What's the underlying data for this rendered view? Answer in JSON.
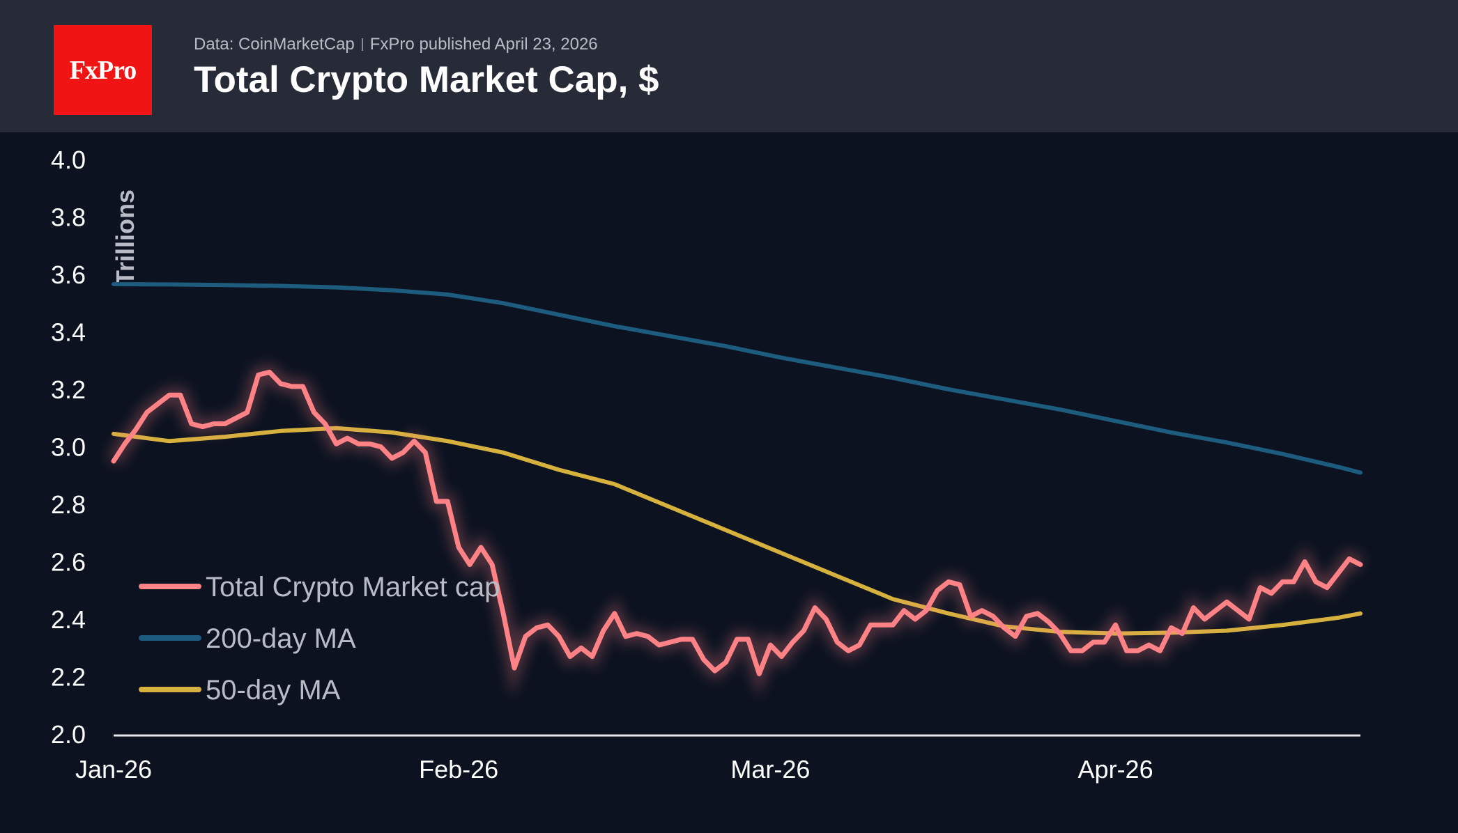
{
  "header": {
    "logo": "FxPro",
    "source": "Data: CoinMarketCap",
    "published": "FxPro published April 23, 2026",
    "title": "Total Crypto Market Cap, $"
  },
  "chart_data": {
    "type": "line",
    "title": "Total Crypto Market Cap, $",
    "ylabel": "Trillions",
    "xlabel": "",
    "ylim": [
      2.0,
      4.0
    ],
    "yticks": [
      "2.0",
      "2.2",
      "2.4",
      "2.6",
      "2.8",
      "3.0",
      "3.2",
      "3.4",
      "3.6",
      "3.8",
      "4.0"
    ],
    "xticks": [
      {
        "label": "Jan-26",
        "date": "2026-01-01"
      },
      {
        "label": "Feb-26",
        "date": "2026-02-01"
      },
      {
        "label": "Mar-26",
        "date": "2026-03-01"
      },
      {
        "label": "Apr-26",
        "date": "2026-04-01"
      }
    ],
    "x_range": [
      "2026-01-01",
      "2026-04-23"
    ],
    "grid": false,
    "legend_placement": "bottom-left",
    "colors": {
      "total": "#ff8286",
      "ma200": "#1d5c7e",
      "ma50": "#d6b13e"
    },
    "series": [
      {
        "name": "Total Crypto Market cap",
        "frequency": "daily",
        "start": "2026-01-01",
        "values": [
          2.95,
          3.01,
          3.06,
          3.12,
          3.15,
          3.18,
          3.18,
          3.08,
          3.07,
          3.08,
          3.08,
          3.1,
          3.12,
          3.25,
          3.26,
          3.22,
          3.21,
          3.21,
          3.12,
          3.08,
          3.01,
          3.03,
          3.01,
          3.01,
          3.0,
          2.96,
          2.98,
          3.02,
          2.98,
          2.81,
          2.81,
          2.65,
          2.59,
          2.65,
          2.59,
          2.42,
          2.23,
          2.34,
          2.37,
          2.38,
          2.34,
          2.27,
          2.3,
          2.27,
          2.36,
          2.42,
          2.34,
          2.35,
          2.34,
          2.31,
          2.32,
          2.33,
          2.33,
          2.26,
          2.22,
          2.25,
          2.33,
          2.33,
          2.21,
          2.31,
          2.27,
          2.32,
          2.36,
          2.44,
          2.4,
          2.32,
          2.29,
          2.31,
          2.38,
          2.38,
          2.38,
          2.43,
          2.4,
          2.43,
          2.5,
          2.53,
          2.52,
          2.41,
          2.43,
          2.41,
          2.37,
          2.34,
          2.41,
          2.42,
          2.39,
          2.35,
          2.29,
          2.29,
          2.32,
          2.32,
          2.38,
          2.29,
          2.29,
          2.31,
          2.29,
          2.37,
          2.35,
          2.44,
          2.4,
          2.43,
          2.46,
          2.43,
          2.4,
          2.51,
          2.49,
          2.53,
          2.53,
          2.6,
          2.53,
          2.51,
          2.56,
          2.61,
          2.59
        ]
      },
      {
        "name": "200-day MA",
        "dates": [
          "2026-01-01",
          "2026-01-06",
          "2026-01-11",
          "2026-01-16",
          "2026-01-21",
          "2026-01-26",
          "2026-01-31",
          "2026-02-05",
          "2026-02-10",
          "2026-02-15",
          "2026-02-20",
          "2026-02-25",
          "2026-03-02",
          "2026-03-07",
          "2026-03-12",
          "2026-03-17",
          "2026-03-22",
          "2026-03-27",
          "2026-04-01",
          "2026-04-06",
          "2026-04-11",
          "2026-04-16",
          "2026-04-21",
          "2026-04-23"
        ],
        "values": [
          3.566,
          3.565,
          3.563,
          3.56,
          3.555,
          3.545,
          3.53,
          3.5,
          3.46,
          3.42,
          3.385,
          3.35,
          3.31,
          3.275,
          3.24,
          3.2,
          3.165,
          3.13,
          3.09,
          3.05,
          3.015,
          2.975,
          2.93,
          2.91
        ]
      },
      {
        "name": "50-day MA",
        "dates": [
          "2026-01-01",
          "2026-01-06",
          "2026-01-11",
          "2026-01-16",
          "2026-01-21",
          "2026-01-26",
          "2026-01-31",
          "2026-02-05",
          "2026-02-10",
          "2026-02-15",
          "2026-02-20",
          "2026-02-25",
          "2026-03-02",
          "2026-03-07",
          "2026-03-12",
          "2026-03-17",
          "2026-03-22",
          "2026-03-27",
          "2026-04-01",
          "2026-04-06",
          "2026-04-11",
          "2026-04-16",
          "2026-04-21",
          "2026-04-23"
        ],
        "values": [
          3.045,
          3.02,
          3.035,
          3.055,
          3.065,
          3.05,
          3.02,
          2.98,
          2.92,
          2.87,
          2.79,
          2.71,
          2.63,
          2.55,
          2.47,
          2.42,
          2.375,
          2.356,
          2.35,
          2.353,
          2.36,
          2.38,
          2.405,
          2.42
        ]
      }
    ]
  }
}
